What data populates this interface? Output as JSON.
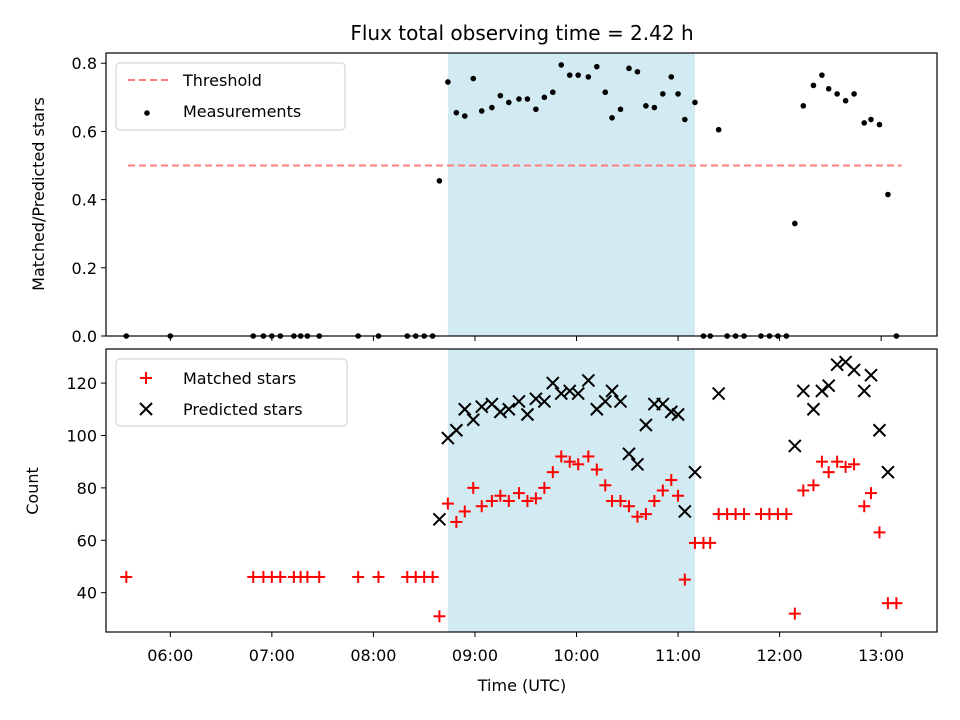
{
  "chart_data": [
    {
      "type": "scatter",
      "title": "Flux total observing time = 2.42 h",
      "xlabel": "",
      "ylabel": "Matched/Predicted stars",
      "xlim": [
        "05:22",
        "13:33"
      ],
      "ylim": [
        0,
        0.83
      ],
      "yticks": [
        0.0,
        0.2,
        0.4,
        0.6,
        0.8
      ],
      "ytick_labels": [
        "0.0",
        "0.2",
        "0.4",
        "0.6",
        "0.8"
      ],
      "highlight_span": [
        "08:44",
        "11:10"
      ],
      "highlight_color": "#add8e6",
      "legend": {
        "placement": "upper-left",
        "entries": [
          "Threshold",
          "Measurements"
        ]
      },
      "threshold": {
        "name": "Threshold",
        "x": [
          "05:35",
          "13:12"
        ],
        "y": 0.5,
        "color": "#ff7f7f",
        "style": "dashed"
      },
      "series": [
        {
          "name": "Measurements",
          "marker": "dot",
          "color": "#000000",
          "points": [
            [
              "05:34",
              0
            ],
            [
              "06:00",
              0
            ],
            [
              "06:49",
              0
            ],
            [
              "06:55",
              0
            ],
            [
              "07:00",
              0
            ],
            [
              "07:05",
              0
            ],
            [
              "07:13",
              0
            ],
            [
              "07:17",
              0
            ],
            [
              "07:21",
              0
            ],
            [
              "07:28",
              0
            ],
            [
              "07:51",
              0
            ],
            [
              "08:03",
              0
            ],
            [
              "08:20",
              0
            ],
            [
              "08:25",
              0
            ],
            [
              "08:30",
              0
            ],
            [
              "08:35",
              0
            ],
            [
              "08:39",
              0.455
            ],
            [
              "08:44",
              0.745
            ],
            [
              "08:49",
              0.655
            ],
            [
              "08:54",
              0.645
            ],
            [
              "08:59",
              0.755
            ],
            [
              "09:04",
              0.66
            ],
            [
              "09:10",
              0.67
            ],
            [
              "09:15",
              0.705
            ],
            [
              "09:20",
              0.685
            ],
            [
              "09:26",
              0.695
            ],
            [
              "09:31",
              0.695
            ],
            [
              "09:36",
              0.665
            ],
            [
              "09:41",
              0.7
            ],
            [
              "09:46",
              0.715
            ],
            [
              "09:51",
              0.795
            ],
            [
              "09:56",
              0.765
            ],
            [
              "10:01",
              0.765
            ],
            [
              "10:07",
              0.76
            ],
            [
              "10:12",
              0.79
            ],
            [
              "10:17",
              0.715
            ],
            [
              "10:21",
              0.64
            ],
            [
              "10:26",
              0.665
            ],
            [
              "10:31",
              0.785
            ],
            [
              "10:36",
              0.775
            ],
            [
              "10:41",
              0.675
            ],
            [
              "10:46",
              0.67
            ],
            [
              "10:51",
              0.71
            ],
            [
              "10:56",
              0.76
            ],
            [
              "11:00",
              0.71
            ],
            [
              "11:04",
              0.635
            ],
            [
              "11:10",
              0.685
            ],
            [
              "11:15",
              0
            ],
            [
              "11:19",
              0
            ],
            [
              "11:24",
              0.605
            ],
            [
              "11:29",
              0
            ],
            [
              "11:34",
              0
            ],
            [
              "11:39",
              0
            ],
            [
              "11:49",
              0
            ],
            [
              "11:54",
              0
            ],
            [
              "11:59",
              0
            ],
            [
              "12:04",
              0
            ],
            [
              "12:09",
              0.33
            ],
            [
              "12:14",
              0.675
            ],
            [
              "12:20",
              0.735
            ],
            [
              "12:25",
              0.765
            ],
            [
              "12:29",
              0.725
            ],
            [
              "12:34",
              0.71
            ],
            [
              "12:39",
              0.69
            ],
            [
              "12:44",
              0.71
            ],
            [
              "12:50",
              0.625
            ],
            [
              "12:54",
              0.635
            ],
            [
              "12:59",
              0.62
            ],
            [
              "13:04",
              0.415
            ],
            [
              "13:09",
              0
            ]
          ]
        }
      ]
    },
    {
      "type": "scatter",
      "title": "",
      "xlabel": "Time (UTC)",
      "ylabel": "Count",
      "xlim": [
        "05:22",
        "13:33"
      ],
      "ylim": [
        25,
        133
      ],
      "xticks": [
        "06:00",
        "07:00",
        "08:00",
        "09:00",
        "10:00",
        "11:00",
        "12:00",
        "13:00"
      ],
      "yticks": [
        40,
        60,
        80,
        100,
        120
      ],
      "ytick_labels": [
        "40",
        "60",
        "80",
        "100",
        "120"
      ],
      "highlight_span": [
        "08:44",
        "11:10"
      ],
      "highlight_color": "#add8e6",
      "legend": {
        "placement": "upper-left",
        "entries": [
          "Matched stars",
          "Predicted stars"
        ]
      },
      "series": [
        {
          "name": "Matched stars",
          "marker": "plus",
          "color": "#ff0000",
          "points": [
            [
              "05:34",
              46
            ],
            [
              "06:49",
              46
            ],
            [
              "06:55",
              46
            ],
            [
              "07:00",
              46
            ],
            [
              "07:05",
              46
            ],
            [
              "07:13",
              46
            ],
            [
              "07:17",
              46
            ],
            [
              "07:21",
              46
            ],
            [
              "07:28",
              46
            ],
            [
              "07:51",
              46
            ],
            [
              "08:03",
              46
            ],
            [
              "08:20",
              46
            ],
            [
              "08:25",
              46
            ],
            [
              "08:30",
              46
            ],
            [
              "08:35",
              46
            ],
            [
              "08:39",
              31
            ],
            [
              "08:44",
              74
            ],
            [
              "08:49",
              67
            ],
            [
              "08:54",
              71
            ],
            [
              "08:59",
              80
            ],
            [
              "09:04",
              73
            ],
            [
              "09:10",
              75
            ],
            [
              "09:15",
              77
            ],
            [
              "09:20",
              75
            ],
            [
              "09:26",
              78
            ],
            [
              "09:31",
              75
            ],
            [
              "09:36",
              76
            ],
            [
              "09:41",
              80
            ],
            [
              "09:46",
              86
            ],
            [
              "09:51",
              92
            ],
            [
              "09:56",
              90
            ],
            [
              "10:01",
              89
            ],
            [
              "10:07",
              92
            ],
            [
              "10:12",
              87
            ],
            [
              "10:17",
              81
            ],
            [
              "10:21",
              75
            ],
            [
              "10:26",
              75
            ],
            [
              "10:31",
              73
            ],
            [
              "10:36",
              69
            ],
            [
              "10:41",
              70
            ],
            [
              "10:46",
              75
            ],
            [
              "10:51",
              79
            ],
            [
              "10:56",
              83
            ],
            [
              "11:00",
              77
            ],
            [
              "11:04",
              45
            ],
            [
              "11:10",
              59
            ],
            [
              "11:15",
              59
            ],
            [
              "11:19",
              59
            ],
            [
              "11:24",
              70
            ],
            [
              "11:29",
              70
            ],
            [
              "11:34",
              70
            ],
            [
              "11:39",
              70
            ],
            [
              "11:49",
              70
            ],
            [
              "11:54",
              70
            ],
            [
              "11:59",
              70
            ],
            [
              "12:04",
              70
            ],
            [
              "12:09",
              32
            ],
            [
              "12:14",
              79
            ],
            [
              "12:20",
              81
            ],
            [
              "12:25",
              90
            ],
            [
              "12:29",
              86
            ],
            [
              "12:34",
              90
            ],
            [
              "12:39",
              88
            ],
            [
              "12:44",
              89
            ],
            [
              "12:50",
              73
            ],
            [
              "12:54",
              78
            ],
            [
              "12:59",
              63
            ],
            [
              "13:04",
              36
            ],
            [
              "13:09",
              36
            ]
          ]
        },
        {
          "name": "Predicted stars",
          "marker": "x",
          "color": "#000000",
          "points": [
            [
              "08:39",
              68
            ],
            [
              "08:44",
              99
            ],
            [
              "08:49",
              102
            ],
            [
              "08:54",
              110
            ],
            [
              "08:59",
              106
            ],
            [
              "09:04",
              111
            ],
            [
              "09:10",
              112
            ],
            [
              "09:15",
              109
            ],
            [
              "09:20",
              110
            ],
            [
              "09:26",
              113
            ],
            [
              "09:31",
              108
            ],
            [
              "09:36",
              114
            ],
            [
              "09:41",
              113
            ],
            [
              "09:46",
              120
            ],
            [
              "09:51",
              116
            ],
            [
              "09:56",
              117
            ],
            [
              "10:01",
              116
            ],
            [
              "10:07",
              121
            ],
            [
              "10:12",
              110
            ],
            [
              "10:17",
              113
            ],
            [
              "10:21",
              117
            ],
            [
              "10:26",
              113
            ],
            [
              "10:31",
              93
            ],
            [
              "10:36",
              89
            ],
            [
              "10:41",
              104
            ],
            [
              "10:46",
              112
            ],
            [
              "10:51",
              112
            ],
            [
              "10:56",
              109
            ],
            [
              "11:00",
              108
            ],
            [
              "11:04",
              71
            ],
            [
              "11:10",
              86
            ],
            [
              "11:24",
              116
            ],
            [
              "12:09",
              96
            ],
            [
              "12:14",
              117
            ],
            [
              "12:20",
              110
            ],
            [
              "12:25",
              117
            ],
            [
              "12:29",
              119
            ],
            [
              "12:34",
              127
            ],
            [
              "12:39",
              128
            ],
            [
              "12:44",
              125
            ],
            [
              "12:50",
              117
            ],
            [
              "12:54",
              123
            ],
            [
              "12:59",
              102
            ],
            [
              "13:04",
              86
            ]
          ]
        }
      ]
    }
  ]
}
